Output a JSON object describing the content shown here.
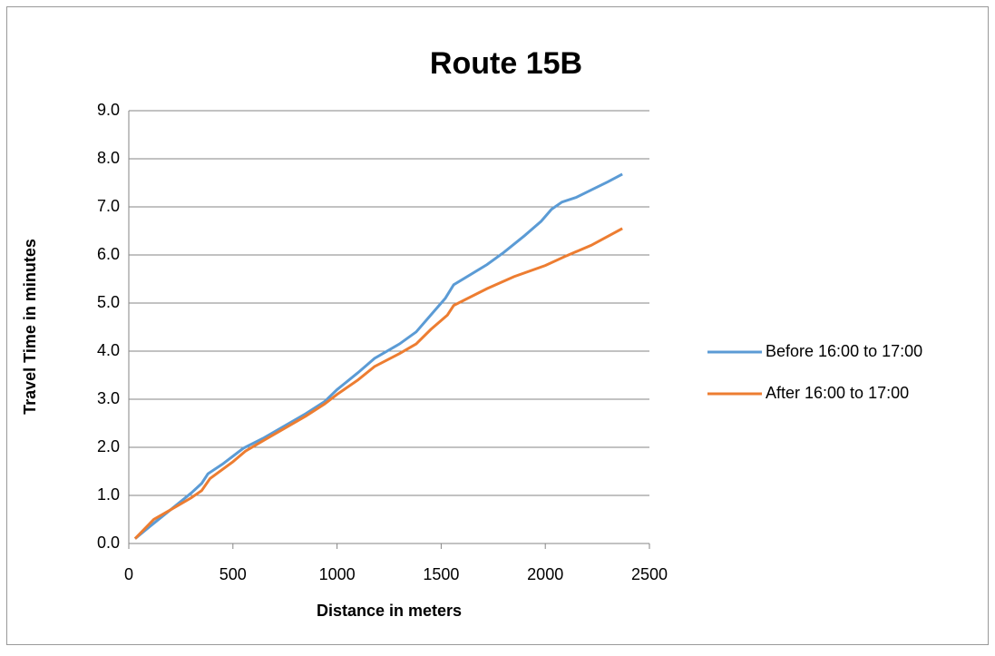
{
  "chart_data": {
    "type": "line",
    "title": "Route 15B",
    "x_label": "Distance in meters",
    "y_label": "Travel Time in minutes",
    "xlim": [
      0,
      2500
    ],
    "xticks": [
      0,
      500,
      1000,
      1500,
      2000,
      2500
    ],
    "ylim": [
      0,
      9
    ],
    "yticks": [
      {
        "value": 0,
        "label": "0.0"
      },
      {
        "value": 1,
        "label": "1.0"
      },
      {
        "value": 2,
        "label": "2.0"
      },
      {
        "value": 3,
        "label": "3.0"
      },
      {
        "value": 4,
        "label": "4.0"
      },
      {
        "value": 5,
        "label": "5.0"
      },
      {
        "value": 6,
        "label": "6.0"
      },
      {
        "value": 7,
        "label": "7.0"
      },
      {
        "value": 8,
        "label": "8.0"
      },
      {
        "value": 9,
        "label": "9.0"
      }
    ],
    "grid": true,
    "legend": "right",
    "series": [
      {
        "name": "Before 16:00 to 17:00",
        "color": "#5b9bd5",
        "x": [
          30,
          100,
          200,
          300,
          350,
          380,
          450,
          550,
          650,
          750,
          850,
          940,
          1000,
          1100,
          1180,
          1300,
          1380,
          1450,
          1520,
          1560,
          1720,
          1800,
          1900,
          1980,
          2030,
          2080,
          2150,
          2220,
          2300,
          2370
        ],
        "values": [
          0.1,
          0.35,
          0.7,
          1.05,
          1.25,
          1.45,
          1.65,
          1.98,
          2.2,
          2.45,
          2.7,
          2.95,
          3.2,
          3.55,
          3.85,
          4.15,
          4.4,
          4.75,
          5.1,
          5.38,
          5.8,
          6.05,
          6.4,
          6.7,
          6.95,
          7.1,
          7.2,
          7.35,
          7.52,
          7.68
        ]
      },
      {
        "name": "After 16:00 to 17:00",
        "color": "#ed7d31",
        "x": [
          30,
          120,
          200,
          300,
          350,
          390,
          500,
          560,
          650,
          750,
          850,
          940,
          1000,
          1100,
          1180,
          1300,
          1380,
          1450,
          1530,
          1560,
          1720,
          1850,
          2000,
          2100,
          2220,
          2370
        ],
        "values": [
          0.1,
          0.5,
          0.7,
          0.95,
          1.1,
          1.35,
          1.7,
          1.92,
          2.15,
          2.4,
          2.65,
          2.9,
          3.1,
          3.4,
          3.68,
          3.95,
          4.15,
          4.45,
          4.75,
          4.95,
          5.3,
          5.55,
          5.78,
          5.98,
          6.2,
          6.55
        ]
      }
    ]
  }
}
